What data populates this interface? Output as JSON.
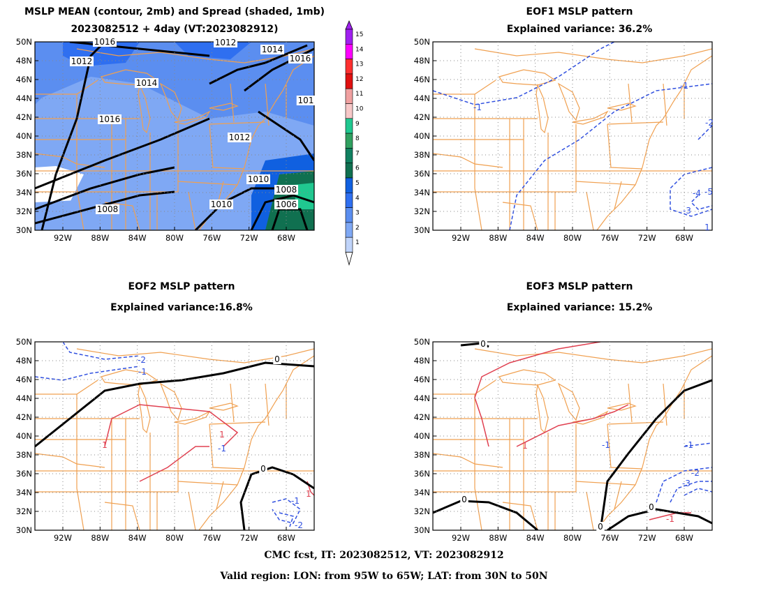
{
  "panels": {
    "mean": {
      "title1": "MSLP MEAN (contour, 2mb) and Spread (shaded, 1mb)",
      "title2": "2023082512 + 4day (VT:2023082912)"
    },
    "eof1": {
      "title1": "EOF1 MSLP pattern",
      "title2": "Explained variance: 36.2%"
    },
    "eof2": {
      "title1": "EOF2 MSLP pattern",
      "title2": "Explained variance:16.8%"
    },
    "eof3": {
      "title1": "EOF3 MSLP pattern",
      "title2": "Explained variance: 15.2%"
    }
  },
  "axes": {
    "lat_labels": [
      "50N",
      "48N",
      "46N",
      "44N",
      "42N",
      "40N",
      "38N",
      "36N",
      "34N",
      "32N",
      "30N"
    ],
    "lon_labels": [
      "92W",
      "88W",
      "84W",
      "80W",
      "76W",
      "72W",
      "68W"
    ]
  },
  "colorbar": {
    "labels": [
      "15",
      "14",
      "13",
      "12",
      "11",
      "10",
      "9",
      "8",
      "7",
      "6",
      "5",
      "4",
      "3",
      "2",
      "1"
    ],
    "colors": [
      "#a020f0",
      "#ff00ff",
      "#ff3030",
      "#e01010",
      "#f0a0a0",
      "#f7c8c8",
      "#20c890",
      "#30a060",
      "#108060",
      "#107050",
      "#1060e0",
      "#2f6ff0",
      "#5b8ef0",
      "#7fa8f4",
      "#c0d4fa"
    ]
  },
  "mean_contour_labels": [
    "1016",
    "1012",
    "1014",
    "1016",
    "1016",
    "1012",
    "1014",
    "1012",
    "1010",
    "1008",
    "1006",
    "1008",
    "1010",
    "101"
  ],
  "eof1_labels": [
    "-1",
    "-1",
    "-2",
    "-4",
    "-5",
    "-3",
    "1"
  ],
  "eof2_labels": [
    "-2",
    "-1",
    "0",
    "-1",
    "1",
    "1",
    "0",
    "-1",
    "-2",
    "1"
  ],
  "eof3_labels": [
    "0",
    "-1",
    "1",
    "-1",
    "-2",
    "-3",
    "0",
    "0",
    "-1",
    "0"
  ],
  "footer": {
    "line1": "CMC fcst, IT: 2023082512, VT: 2023082912",
    "line2": "Valid region: LON: from 95W to 65W; LAT: from 30N to 50N"
  }
}
